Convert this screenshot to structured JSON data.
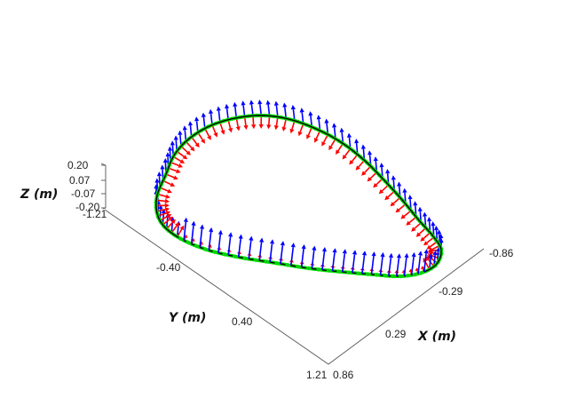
{
  "chart_data": {
    "type": "vector-field-3d",
    "axes": {
      "x": {
        "label": "X (m)",
        "ticks": [
          "-0.86",
          "-0.29",
          "0.29",
          "0.86"
        ]
      },
      "y": {
        "label": "Y (m)",
        "ticks": [
          "-1.21",
          "-0.40",
          "0.40",
          "1.21"
        ]
      },
      "z": {
        "label": "Z (m)",
        "ticks": [
          "0.20",
          "0.07",
          "-0.07",
          "-0.20"
        ]
      }
    },
    "series": [
      {
        "key": "curve",
        "color": "#000000"
      },
      {
        "key": "tangent",
        "color": "#00dd00"
      },
      {
        "key": "normal",
        "color": "#ff0000"
      },
      {
        "key": "binormal",
        "color": "#0000ff"
      }
    ],
    "arrow_count": 90,
    "grid": false,
    "legend": "none"
  }
}
